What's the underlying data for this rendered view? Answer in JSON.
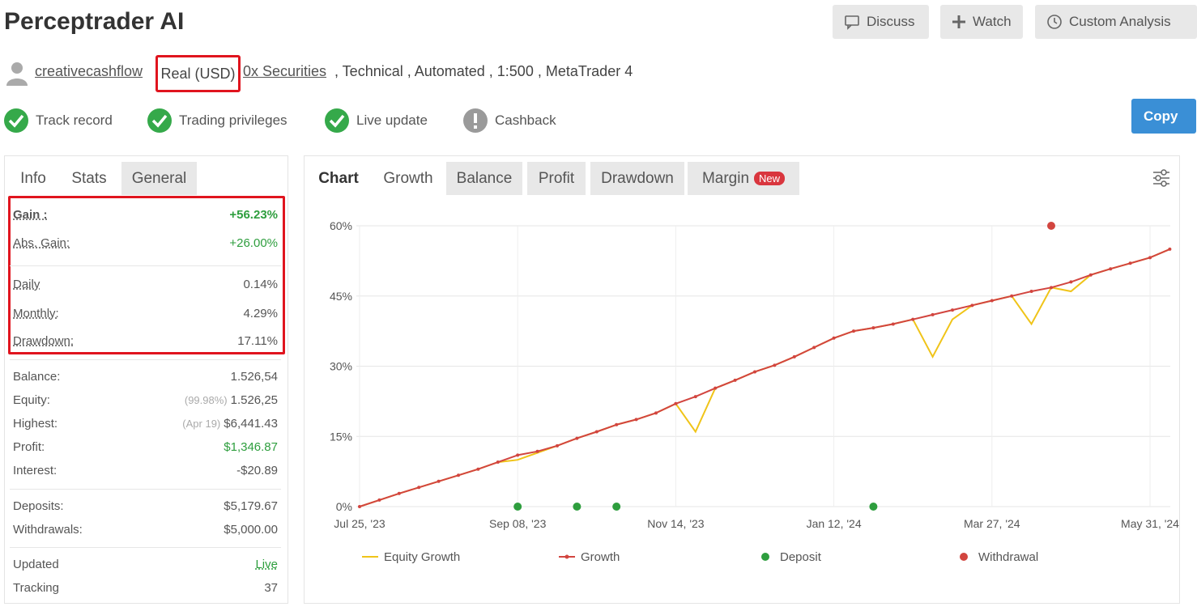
{
  "header": {
    "title": "Perceptrader AI",
    "buttons": [
      "Discuss",
      "Watch",
      "Custom Analysis"
    ]
  },
  "account": {
    "user": "creativecashflow",
    "type": "Real (USD)",
    "broker": "0x Securities",
    "details": ", Technical , Automated , 1:500 , MetaTrader 4"
  },
  "badges": [
    "Track record",
    "Trading privileges",
    "Live update",
    "Cashback"
  ],
  "copy_button": "Copy",
  "info_tabs": [
    "Info",
    "Stats",
    "General"
  ],
  "stats": [
    {
      "label": "Gain :",
      "value": "+56.23%"
    },
    {
      "label": "Abs. Gain:",
      "value": "+26.00%"
    },
    {
      "label": "Daily",
      "value": "0.14%"
    },
    {
      "label": "Monthly:",
      "value": "4.29%"
    },
    {
      "label": "Drawdown:",
      "value": "17.11%"
    },
    {
      "label": "Balance:",
      "value": "1.526,54"
    },
    {
      "label": "Equity:",
      "note": "(99.98%)",
      "value": "1.526,25"
    },
    {
      "label": "Highest:",
      "note": "(Apr 19)",
      "value": "$6,441.43"
    },
    {
      "label": "Profit:",
      "value": "$1,346.87"
    },
    {
      "label": "Interest:",
      "value": "-$20.89"
    },
    {
      "label": "Deposits:",
      "value": "$5,179.67"
    },
    {
      "label": "Withdrawals:",
      "value": "$5,000.00"
    },
    {
      "label": "Updated",
      "value": "Live"
    },
    {
      "label": "Tracking",
      "value": "37"
    }
  ],
  "chart_tabs": [
    "Chart",
    "Growth",
    "Balance",
    "Profit",
    "Drawdown",
    "Margin"
  ],
  "new_badge": "New",
  "chart_data": {
    "type": "line",
    "categories": [
      "Jul 25, '23",
      null,
      null,
      null,
      null,
      null,
      null,
      null,
      "Sep 08, '23",
      null,
      null,
      null,
      null,
      null,
      null,
      null,
      "Nov 14, '23",
      null,
      null,
      null,
      null,
      null,
      null,
      null,
      "Jan 12, '24",
      null,
      null,
      null,
      null,
      null,
      null,
      null,
      "Mar 27, '24",
      null,
      null,
      null,
      null,
      null,
      null,
      null,
      "May 31, '24",
      null
    ],
    "ylim": [
      0,
      60
    ],
    "yticks": [
      {
        "value": 0,
        "label": "0%"
      },
      {
        "value": 15,
        "label": "15%"
      },
      {
        "value": 30,
        "label": "30%"
      },
      {
        "value": 45,
        "label": "45%"
      },
      {
        "value": 60,
        "label": "60%"
      }
    ],
    "grid": true,
    "series": [
      {
        "name": "Equity Growth",
        "color": "#f0c419",
        "mode": "lines",
        "values": [
          0,
          1.4,
          2.8,
          4.1,
          5.4,
          6.7,
          8.0,
          9.5,
          10.0,
          11.5,
          13.0,
          14.6,
          16.0,
          17.5,
          18.6,
          20.0,
          22.0,
          16.0,
          25.3,
          27.0,
          28.8,
          30.2,
          32.0,
          34.0,
          36.0,
          37.5,
          38.2,
          39.0,
          40.0,
          32.0,
          40.0,
          43.0,
          44.0,
          45.0,
          39.0,
          46.8,
          46.0,
          49.5,
          50.8,
          52.0,
          53.2,
          55.0
        ]
      },
      {
        "name": "Growth",
        "color": "#d2453f",
        "mode": "lines+markers",
        "values": [
          0,
          1.4,
          2.8,
          4.1,
          5.4,
          6.7,
          8.0,
          9.5,
          11.0,
          11.8,
          13.0,
          14.6,
          16.0,
          17.5,
          18.6,
          20.0,
          22.0,
          23.5,
          25.3,
          27.0,
          28.8,
          30.2,
          32.0,
          34.0,
          36.0,
          37.5,
          38.2,
          39.0,
          40.0,
          41.0,
          42.0,
          43.0,
          44.0,
          45.0,
          46.0,
          46.8,
          48.0,
          49.5,
          50.8,
          52.0,
          53.2,
          55.0
        ]
      },
      {
        "name": "Deposit",
        "color": "#2e9e3e",
        "mode": "markers",
        "values": [
          null,
          null,
          null,
          null,
          null,
          null,
          null,
          null,
          0,
          null,
          null,
          0,
          null,
          0,
          null,
          null,
          null,
          null,
          null,
          null,
          null,
          null,
          null,
          null,
          null,
          null,
          0,
          null,
          null,
          null,
          null,
          null,
          null,
          null,
          null,
          null,
          null,
          null,
          null,
          null,
          null,
          null
        ]
      },
      {
        "name": "Withdrawal",
        "color": "#d2453f",
        "mode": "markers",
        "values": [
          null,
          null,
          null,
          null,
          null,
          null,
          null,
          null,
          null,
          null,
          null,
          null,
          null,
          null,
          null,
          null,
          null,
          null,
          null,
          null,
          null,
          null,
          null,
          null,
          null,
          null,
          null,
          null,
          null,
          null,
          null,
          null,
          null,
          null,
          null,
          60,
          null,
          null,
          null,
          null,
          null,
          null
        ]
      }
    ]
  }
}
